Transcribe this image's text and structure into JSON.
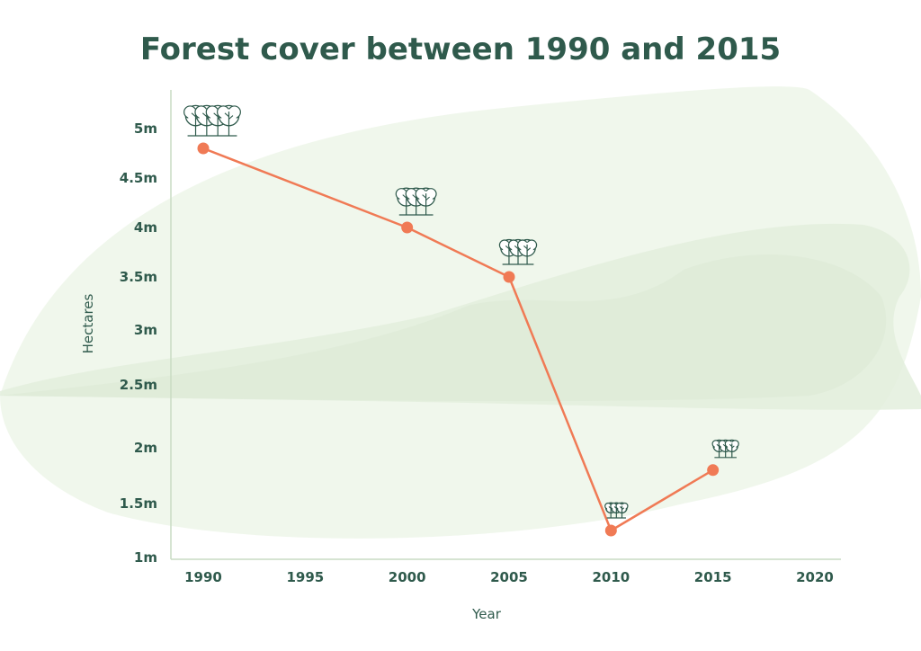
{
  "chart_data": {
    "type": "line",
    "title": "Forest cover between 1990 and 2015",
    "xlabel": "Year",
    "ylabel": "Hectares",
    "x_ticks": [
      "1990",
      "1995",
      "2000",
      "2005",
      "2010",
      "2015",
      "2020"
    ],
    "y_ticks": [
      "1m",
      "1.5m",
      "2m",
      "2.5m",
      "3m",
      "3.5m",
      "4m",
      "4.5m",
      "5m"
    ],
    "xlim": [
      1990,
      2020
    ],
    "ylim": [
      1,
      5
    ],
    "series": [
      {
        "x": [
          1990,
          2000,
          2005,
          2010,
          2015
        ],
        "values": [
          4.8,
          4.0,
          3.5,
          1.25,
          1.8
        ],
        "color": "#f07a55"
      }
    ],
    "grid": false,
    "marker_icon": "tree-cluster-icon",
    "icon_color": "#2f5a4c",
    "background_color": "#eef6ea"
  }
}
